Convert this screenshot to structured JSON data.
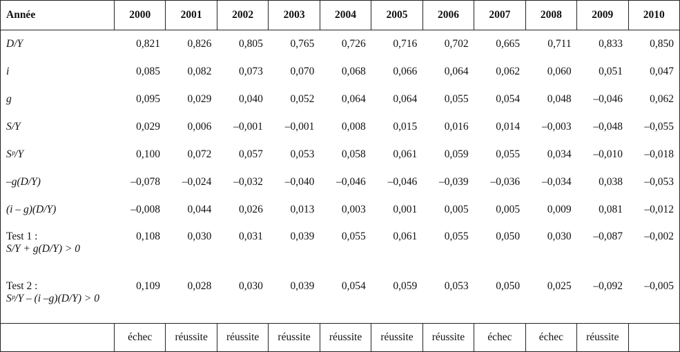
{
  "table": {
    "header": {
      "label": "Année",
      "years": [
        "2000",
        "2001",
        "2002",
        "2003",
        "2004",
        "2005",
        "2006",
        "2007",
        "2008",
        "2009",
        "2010"
      ]
    },
    "rows": [
      {
        "label": [
          "D/Y"
        ],
        "values": [
          "0,821",
          "0,826",
          "0,805",
          "0,765",
          "0,726",
          "0,716",
          "0,702",
          "0,665",
          "0,711",
          "0,833",
          "0,850"
        ]
      },
      {
        "label": [
          "i"
        ],
        "values": [
          "0,085",
          "0,082",
          "0,073",
          "0,070",
          "0,068",
          "0,066",
          "0,064",
          "0,062",
          "0,060",
          "0,051",
          "0,047"
        ]
      },
      {
        "label": [
          "g"
        ],
        "values": [
          "0,095",
          "0,029",
          "0,040",
          "0,052",
          "0,064",
          "0,064",
          "0,055",
          "0,054",
          "0,048",
          "–0,046",
          "0,062"
        ]
      },
      {
        "label": [
          "S/Y"
        ],
        "values": [
          "0,029",
          "0,006",
          "–0,001",
          "–0,001",
          "0,008",
          "0,015",
          "0,016",
          "0,014",
          "–0,003",
          "–0,048",
          "–0,055"
        ]
      },
      {
        "label": [
          "Sᵖ/Y"
        ],
        "values": [
          "0,100",
          "0,072",
          "0,057",
          "0,053",
          "0,058",
          "0,061",
          "0,059",
          "0,055",
          "0,034",
          "–0,010",
          "–0,018"
        ]
      },
      {
        "label": [
          "–g(D/Y)"
        ],
        "values": [
          "–0,078",
          "–0,024",
          "–0,032",
          "–0,040",
          "–0,046",
          "–0,046",
          "–0,039",
          "–0,036",
          "–0,034",
          "0,038",
          "–0,053"
        ]
      },
      {
        "label": [
          "(i – g)(D/Y)"
        ],
        "values": [
          "–0,008",
          "0,044",
          "0,026",
          "0,013",
          "0,003",
          "0,001",
          "0,005",
          "0,005",
          "0,009",
          "0,081",
          "–0,012"
        ]
      },
      {
        "label": [
          "Test 1 :",
          "S/Y + g(D/Y) > 0"
        ],
        "values": [
          "0,108",
          "0,030",
          "0,031",
          "0,039",
          "0,055",
          "0,061",
          "0,055",
          "0,050",
          "0,030",
          "–0,087",
          "–0,002"
        ]
      },
      {
        "label": [
          "Test 2 :",
          "Sᵖ/Y – (i –g)(D/Y) > 0"
        ],
        "values": [
          "0,109",
          "0,028",
          "0,030",
          "0,039",
          "0,054",
          "0,059",
          "0,053",
          "0,050",
          "0,025",
          "–0,092",
          "–0,005"
        ]
      }
    ],
    "footer": [
      "échec",
      "réussite",
      "réussite",
      "réussite",
      "réussite",
      "réussite",
      "réussite",
      "échec",
      "échec",
      "réussite"
    ]
  }
}
